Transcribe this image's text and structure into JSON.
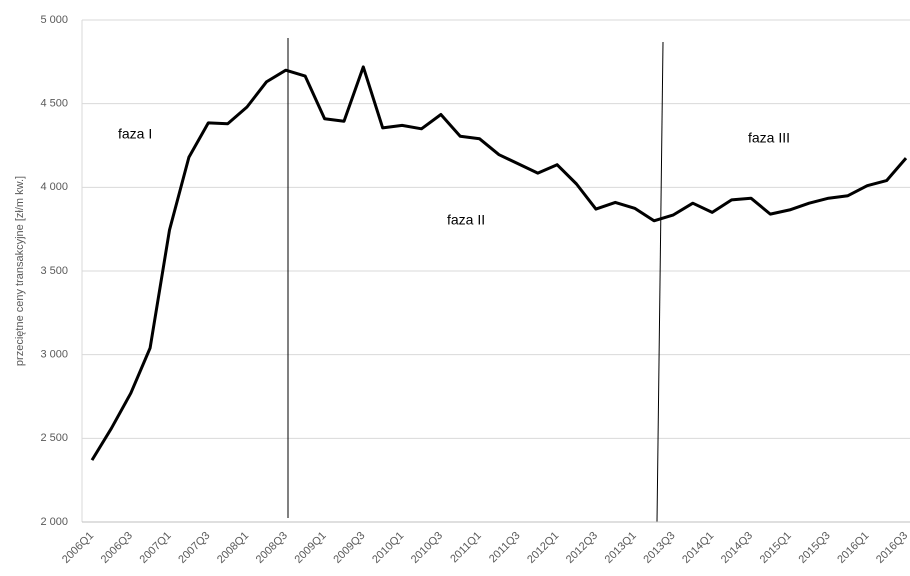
{
  "chart_data": {
    "type": "line",
    "y_label": "przeciętne ceny transakcyjne [zł/m kw.]",
    "annotations": [
      "faza I",
      "faza II",
      "faza III"
    ],
    "categories": [
      "2006Q1",
      null,
      "2006Q3",
      null,
      "2007Q1",
      null,
      "2007Q3",
      null,
      "2008Q1",
      null,
      "2008Q3",
      null,
      "2009Q1",
      null,
      "2009Q3",
      null,
      "2010Q1",
      null,
      "2010Q3",
      null,
      "2011Q1",
      null,
      "2011Q3",
      null,
      "2012Q1",
      null,
      "2012Q3",
      null,
      "2013Q1",
      null,
      "2013Q3",
      null,
      "2014Q1",
      null,
      "2014Q3",
      null,
      "2015Q1",
      null,
      "2015Q3",
      null,
      "2016Q1",
      null,
      "2016Q3"
    ],
    "values": [
      2370,
      2560,
      2770,
      3040,
      3745,
      4180,
      4385,
      4380,
      4480,
      4630,
      4700,
      4665,
      4410,
      4395,
      4720,
      4355,
      4370,
      4350,
      4435,
      4305,
      4290,
      4195,
      4140,
      4085,
      4135,
      4020,
      3870,
      3910,
      3875,
      3800,
      3835,
      3905,
      3850,
      3925,
      3935,
      3840,
      3865,
      3905,
      3935,
      3950,
      4010,
      4040,
      4175
    ],
    "color": "#000000",
    "ylim": [
      2000,
      5000
    ],
    "yticks": [
      {
        "value": 2000,
        "label": "2 000"
      },
      {
        "value": 2500,
        "label": "2 500"
      },
      {
        "value": 3000,
        "label": "3 000"
      },
      {
        "value": 3500,
        "label": "3 500"
      },
      {
        "value": 4000,
        "label": "4 000"
      },
      {
        "value": 4500,
        "label": "4 500"
      },
      {
        "value": 5000,
        "label": "5 000"
      }
    ],
    "grid": true
  }
}
